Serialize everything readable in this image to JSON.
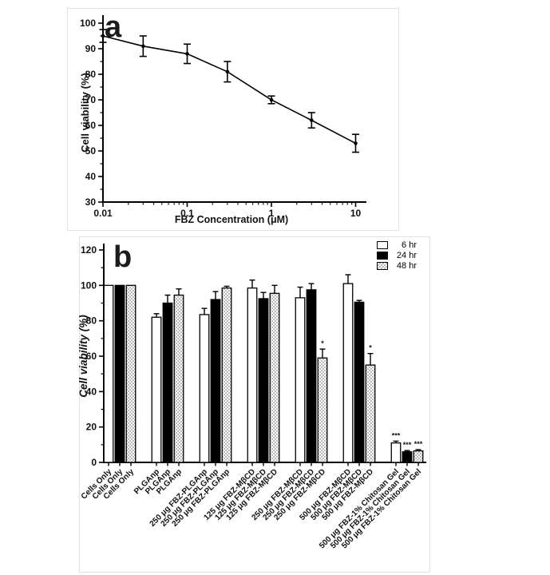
{
  "panels": {
    "a": {
      "label": "a"
    },
    "b": {
      "label": "b"
    }
  },
  "colors": {
    "axis": "#000000",
    "line": "#000000",
    "bar_6hr_fill": "#ffffff",
    "bar_24hr_fill": "#000000",
    "bar_48hr_pattern": "#b9b9b9",
    "panel_border": "#e2e2e2"
  },
  "chart_data": [
    {
      "type": "line",
      "panel": "a",
      "title": "",
      "xlabel": "FBZ Concentration (μM)",
      "ylabel": "Cell viability (%)",
      "xscale": "log",
      "xlim": [
        0.01,
        10
      ],
      "ylim": [
        30,
        100
      ],
      "yticks": [
        30,
        40,
        50,
        60,
        70,
        80,
        90,
        100
      ],
      "xticks": [
        0.01,
        0.1,
        1,
        10
      ],
      "xtick_labels": [
        "0.01",
        "0.1",
        "1",
        "10"
      ],
      "x": [
        0.01,
        0.03,
        0.1,
        0.3,
        1,
        3,
        10
      ],
      "y": [
        95,
        91,
        88,
        81,
        70,
        62,
        53
      ],
      "yerr": [
        2.5,
        4,
        3.8,
        4,
        1.5,
        3,
        3.5
      ],
      "marker": "circle",
      "grid": "off"
    },
    {
      "type": "bar",
      "panel": "b",
      "title": "",
      "xlabel": "",
      "ylabel": "Cell viability (%)",
      "ylim": [
        0,
        120
      ],
      "yticks": [
        0,
        20,
        40,
        60,
        80,
        100,
        120
      ],
      "grid": "off",
      "legend_position": "top-right",
      "categories": [
        "Cells Only",
        "PLGAnp",
        "250 μg FBZ-PLGAnp",
        "125 μg FBZ-MβCD",
        "250 μg FBZ-MβCD",
        "500 μg FBZ-MβCD",
        "500 μg FBZ-1% Chitosan Gel"
      ],
      "series": [
        {
          "name": "6 hr",
          "style": "white",
          "values": [
            100,
            82,
            83.5,
            98.5,
            93,
            101,
            11
          ],
          "errors": [
            0,
            2,
            3.5,
            4.5,
            6,
            5,
            1
          ],
          "sig": [
            "",
            "",
            "",
            "",
            "",
            "",
            "***"
          ]
        },
        {
          "name": "24 hr",
          "style": "black",
          "values": [
            100,
            90,
            92,
            92.5,
            97.5,
            90.5,
            6
          ],
          "errors": [
            0,
            4.5,
            4.5,
            3.5,
            3.5,
            1,
            0.7
          ],
          "sig": [
            "",
            "",
            "",
            "",
            "",
            "",
            "***"
          ]
        },
        {
          "name": "48 hr",
          "style": "checkered",
          "values": [
            100,
            94.5,
            98.5,
            95.5,
            59,
            55,
            6.5
          ],
          "errors": [
            0,
            3.5,
            1,
            4.5,
            5,
            6.5,
            0.7
          ],
          "sig": [
            "",
            "",
            "",
            "",
            "*",
            "*",
            "***"
          ]
        }
      ]
    }
  ]
}
